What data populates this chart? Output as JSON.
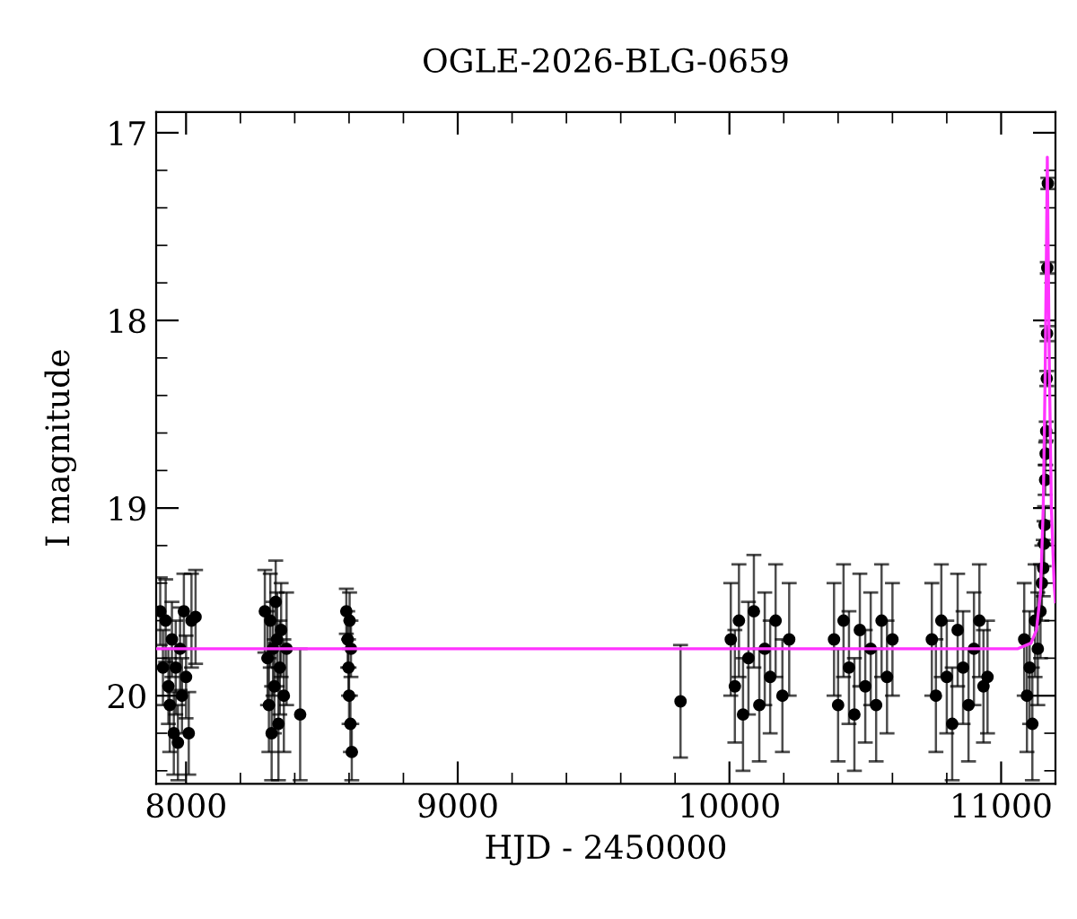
{
  "chart_data": {
    "type": "scatter",
    "title": "OGLE-2026-BLG-0659",
    "xlabel": "HJD - 2450000",
    "ylabel": "I magnitude",
    "xlim": [
      7890,
      11200
    ],
    "ylim": [
      20.47,
      16.89
    ],
    "xticks": [
      8000,
      {
        "value": 8200,
        "label": null
      },
      {
        "value": 8400,
        "label": null
      },
      {
        "value": 8600,
        "label": null
      },
      {
        "value": 8800,
        "label": null
      },
      9000,
      {
        "value": 9200,
        "label": null
      },
      {
        "value": 9400,
        "label": null
      },
      {
        "value": 9600,
        "label": null
      },
      {
        "value": 9800,
        "label": null
      },
      10000,
      {
        "value": 10200,
        "label": null
      },
      {
        "value": 10400,
        "label": null
      },
      {
        "value": 10600,
        "label": null
      },
      {
        "value": 10800,
        "label": null
      },
      11000,
      {
        "value": 11200,
        "label": null
      }
    ],
    "yticks": [
      17,
      {
        "value": 17.2,
        "label": null
      },
      {
        "value": 17.4,
        "label": null
      },
      {
        "value": 17.6,
        "label": null
      },
      {
        "value": 17.8,
        "label": null
      },
      18,
      {
        "value": 18.2,
        "label": null
      },
      {
        "value": 18.4,
        "label": null
      },
      {
        "value": 18.6,
        "label": null
      },
      {
        "value": 18.8,
        "label": null
      },
      19,
      {
        "value": 19.2,
        "label": null
      },
      {
        "value": 19.4,
        "label": null
      },
      {
        "value": 19.6,
        "label": null
      },
      {
        "value": 19.8,
        "label": null
      },
      20,
      {
        "value": 20.2,
        "label": null
      },
      {
        "value": 20.4,
        "label": null
      }
    ],
    "grid": false,
    "legend": false,
    "series": [
      {
        "color": "#000000",
        "marker": "circle",
        "x": [
          7905,
          7915,
          7925,
          7935,
          7940,
          7948,
          7955,
          7962,
          7970,
          7978,
          7985,
          7992,
          8000,
          8010,
          8020,
          8035,
          8290,
          8300,
          8305,
          8310,
          8315,
          8320,
          8325,
          8330,
          8335,
          8340,
          8345,
          8350,
          8360,
          8370,
          8420,
          8590,
          8595,
          8598,
          8600,
          8602,
          8605,
          8607,
          8610,
          9820,
          10005,
          10020,
          10035,
          10050,
          10070,
          10090,
          10110,
          10130,
          10150,
          10170,
          10195,
          10220,
          10385,
          10400,
          10420,
          10440,
          10460,
          10480,
          10500,
          10520,
          10540,
          10560,
          10580,
          10600,
          10745,
          10760,
          10780,
          10800,
          10820,
          10840,
          10860,
          10880,
          10900,
          10920,
          10935,
          10950,
          11085,
          11095,
          11105,
          11115,
          11125,
          11135,
          11145,
          11150,
          11155,
          11158,
          11160,
          11162,
          11164,
          11166,
          11168,
          11169,
          11170,
          11172
        ],
        "values": [
          19.55,
          19.85,
          19.6,
          19.95,
          20.05,
          19.7,
          20.2,
          19.85,
          20.25,
          19.75,
          20.0,
          19.55,
          19.9,
          20.2,
          19.6,
          19.58,
          19.55,
          19.8,
          20.05,
          19.6,
          20.2,
          19.75,
          19.95,
          19.5,
          19.7,
          20.15,
          19.85,
          19.65,
          20.0,
          19.75,
          20.1,
          19.55,
          19.7,
          19.85,
          20.0,
          19.6,
          20.15,
          19.75,
          20.3,
          20.03,
          19.7,
          19.95,
          19.6,
          20.1,
          19.8,
          19.55,
          20.05,
          19.75,
          19.9,
          19.6,
          20.0,
          19.7,
          19.7,
          20.05,
          19.6,
          19.85,
          20.1,
          19.65,
          19.95,
          19.75,
          20.05,
          19.6,
          19.9,
          19.7,
          19.7,
          20.0,
          19.6,
          19.9,
          20.15,
          19.65,
          19.85,
          20.05,
          19.75,
          19.6,
          19.95,
          19.9,
          19.7,
          20.0,
          19.85,
          20.15,
          19.6,
          19.75,
          19.55,
          19.4,
          19.32,
          19.19,
          19.09,
          18.85,
          18.71,
          18.59,
          18.31,
          18.07,
          17.72,
          17.27
        ],
        "errors": [
          0.18,
          0.2,
          0.22,
          0.2,
          0.25,
          0.2,
          0.22,
          0.25,
          0.2,
          0.22,
          0.2,
          0.2,
          0.22,
          0.22,
          0.25,
          0.25,
          0.22,
          0.25,
          0.25,
          0.25,
          0.25,
          0.25,
          0.25,
          0.22,
          0.25,
          0.3,
          0.25,
          0.25,
          0.3,
          0.3,
          0.35,
          0.12,
          0.15,
          0.15,
          0.15,
          0.15,
          0.15,
          0.15,
          0.15,
          0.3,
          0.3,
          0.3,
          0.3,
          0.3,
          0.3,
          0.3,
          0.3,
          0.3,
          0.3,
          0.3,
          0.3,
          0.3,
          0.3,
          0.3,
          0.3,
          0.3,
          0.3,
          0.3,
          0.3,
          0.3,
          0.3,
          0.3,
          0.3,
          0.3,
          0.3,
          0.3,
          0.3,
          0.3,
          0.3,
          0.3,
          0.3,
          0.3,
          0.3,
          0.3,
          0.3,
          0.3,
          0.3,
          0.3,
          0.3,
          0.3,
          0.3,
          0.3,
          0.25,
          0.2,
          0.15,
          0.12,
          0.1,
          0.08,
          0.06,
          0.05,
          0.04,
          0.04,
          0.03,
          0.03
        ]
      },
      {
        "type": "line",
        "color": "#ff33ff",
        "x": [
          7890,
          11060,
          11110,
          11130,
          11145,
          11155,
          11162,
          11167,
          11170,
          11173,
          11178,
          11185,
          11195,
          11200
        ],
        "values": [
          19.75,
          19.75,
          19.72,
          19.65,
          19.45,
          19.0,
          18.3,
          17.6,
          17.13,
          17.6,
          18.3,
          19.0,
          19.4,
          19.5
        ]
      }
    ]
  }
}
